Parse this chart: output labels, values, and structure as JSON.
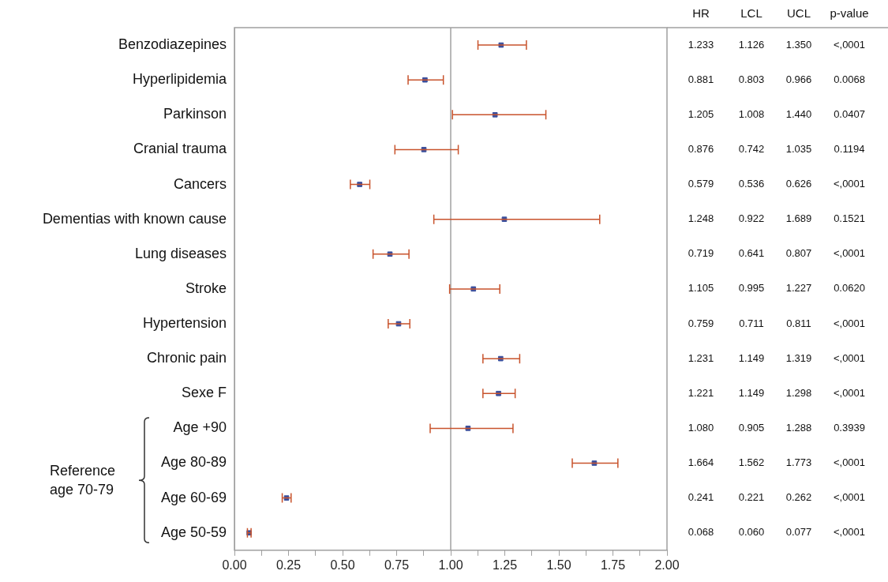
{
  "chart_data": {
    "type": "scatter",
    "orientation": "horizontal",
    "categories": [
      "Benzodiazepines",
      "Hyperlipidemia",
      "Parkinson",
      "Cranial trauma",
      "Cancers",
      "Dementias with known cause",
      "Lung diseases",
      "Stroke",
      "Hypertension",
      "Chronic pain",
      "Sexe F",
      "Age +90",
      "Age 80-89",
      "Age 60-69",
      "Age 50-59"
    ],
    "series": [
      {
        "color": "#3b4f9c",
        "values": [
          1.233,
          0.881,
          1.205,
          0.876,
          0.579,
          1.248,
          0.719,
          1.105,
          0.759,
          1.231,
          1.221,
          1.08,
          1.664,
          0.241,
          0.068
        ],
        "value_labels": [
          "1.233",
          "0.881",
          "1.205",
          "0.876",
          "0.579",
          "1.248",
          "0.719",
          "1.105",
          "0.759",
          "1.231",
          "1.221",
          "1.080",
          "1.664",
          "0.241",
          "0.068"
        ],
        "errors": [
          [
            1.126,
            1.35
          ],
          [
            0.803,
            0.966
          ],
          [
            1.008,
            1.44
          ],
          [
            0.742,
            1.035
          ],
          [
            0.536,
            0.626
          ],
          [
            0.922,
            1.689
          ],
          [
            0.641,
            0.807
          ],
          [
            0.995,
            1.227
          ],
          [
            0.711,
            0.811
          ],
          [
            1.149,
            1.319
          ],
          [
            1.149,
            1.298
          ],
          [
            0.905,
            1.288
          ],
          [
            1.562,
            1.773
          ],
          [
            0.221,
            0.262
          ],
          [
            0.06,
            0.077
          ]
        ]
      }
    ],
    "marker": "square",
    "grid": false,
    "legend": false,
    "xlim": [
      0,
      2
    ],
    "xticks": [
      {
        "value": 0,
        "label": "0.00"
      },
      {
        "value": 0.125,
        "label": null
      },
      {
        "value": 0.25,
        "label": "0.25"
      },
      {
        "value": 0.375,
        "label": null
      },
      {
        "value": 0.5,
        "label": "0.50"
      },
      {
        "value": 0.625,
        "label": null
      },
      {
        "value": 0.75,
        "label": "0.75"
      },
      {
        "value": 0.875,
        "label": null
      },
      {
        "value": 1,
        "label": "1.00"
      },
      {
        "value": 1.125,
        "label": null
      },
      {
        "value": 1.25,
        "label": "1.25"
      },
      {
        "value": 1.375,
        "label": null
      },
      {
        "value": 1.5,
        "label": "1.50"
      },
      {
        "value": 1.625,
        "label": null
      },
      {
        "value": 1.75,
        "label": "1.75"
      },
      {
        "value": 1.875,
        "label": null
      },
      {
        "value": 2,
        "label": "2.00"
      }
    ],
    "ref_lines": [
      {
        "axis": "x",
        "value": 1,
        "color": "#a0a0a0"
      }
    ],
    "annotations": [
      "Reference age 70-79",
      "HR",
      "LCL",
      "UCL",
      "p-value",
      "1.126",
      "0.803",
      "1.008",
      "0.742",
      "0.536",
      "0.922",
      "0.641",
      "0.995",
      "0.711",
      "1.149",
      "1.149",
      "0.905",
      "1.562",
      "0.221",
      "0.060",
      "1.350",
      "0.966",
      "1.440",
      "1.035",
      "0.626",
      "1.689",
      "0.807",
      "1.227",
      "0.811",
      "1.319",
      "1.298",
      "1.288",
      "1.773",
      "0.262",
      "0.077",
      "<,0001",
      "0.0068",
      "0.0407",
      "0.1194",
      "<,0001",
      "0.1521",
      "<,0001",
      "0.0620",
      "<,0001",
      "<,0001",
      "<,0001",
      "0.3939",
      "<,0001",
      "<,0001",
      "<,0001"
    ]
  }
}
